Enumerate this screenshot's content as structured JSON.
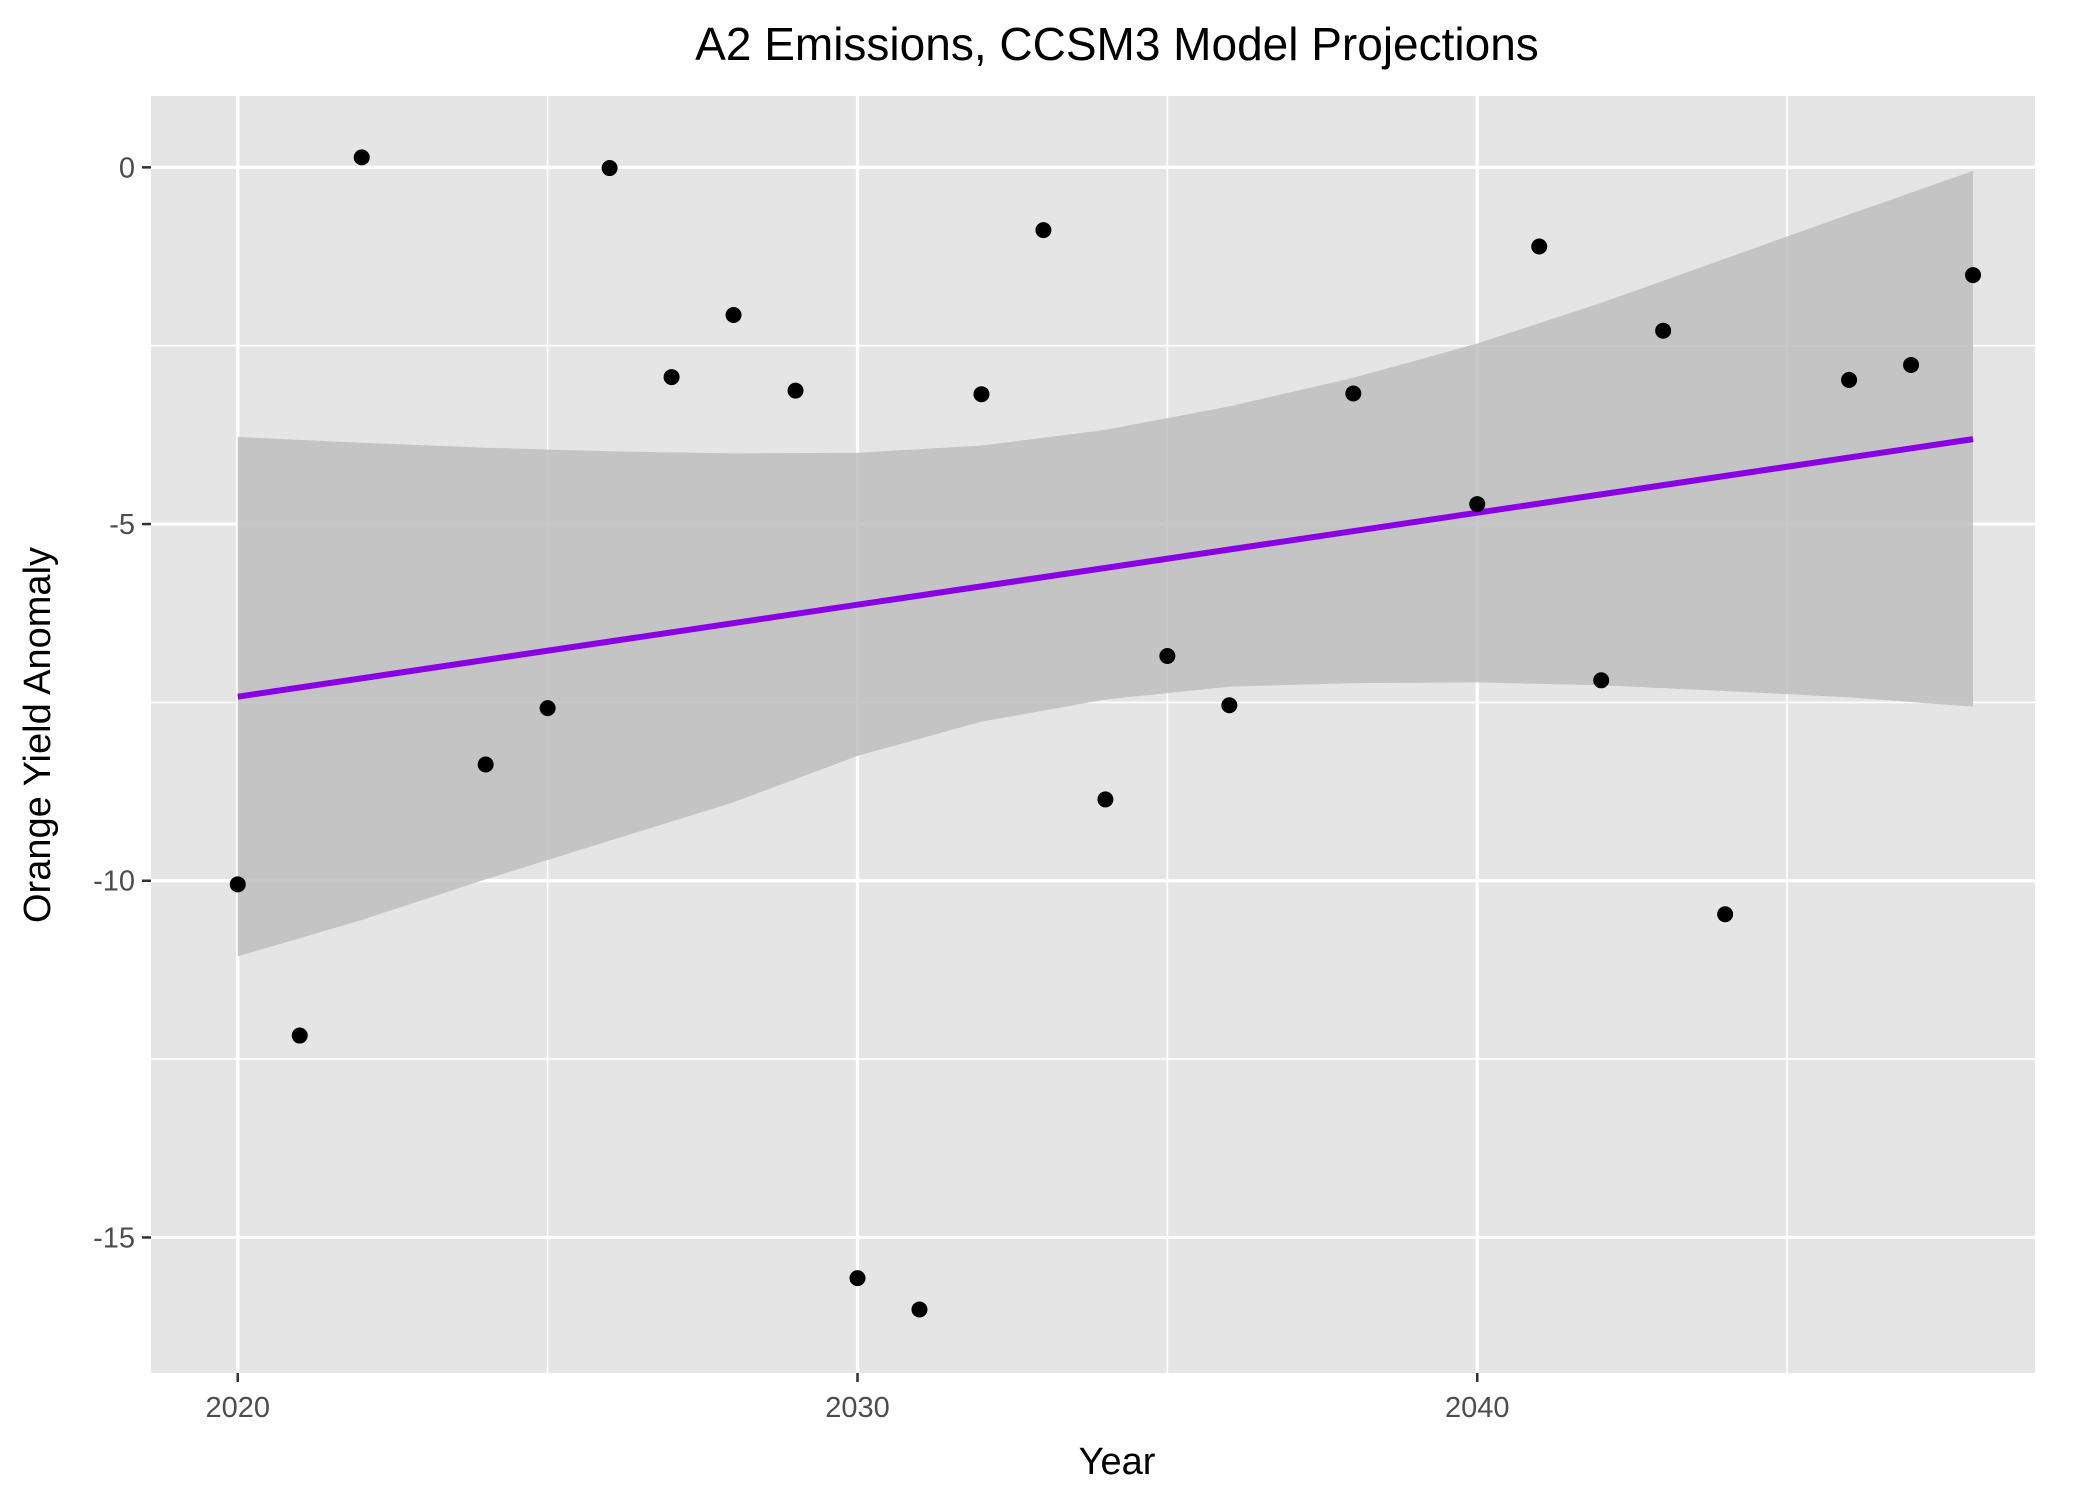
{
  "chart_data": {
    "type": "scatter",
    "title": "A2 Emissions, CCSM3 Model Projections",
    "xlabel": "Year",
    "ylabel": "Orange Yield Anomaly",
    "xlim": [
      2018.6,
      2049.0
    ],
    "ylim": [
      -16.9,
      1.0
    ],
    "x_ticks": [
      2020,
      2030,
      2040
    ],
    "y_ticks": [
      0,
      -5,
      -10,
      -15
    ],
    "x_tick_labels": [
      "2020",
      "2030",
      "2040"
    ],
    "y_tick_labels": [
      "0",
      "-5",
      "-10",
      "-15"
    ],
    "grid": true,
    "points": [
      {
        "x": 2020,
        "y": -10.05
      },
      {
        "x": 2021,
        "y": -12.17
      },
      {
        "x": 2022,
        "y": 0.14
      },
      {
        "x": 2024,
        "y": -8.37
      },
      {
        "x": 2025,
        "y": -7.58
      },
      {
        "x": 2026,
        "y": -0.01
      },
      {
        "x": 2027,
        "y": -2.94
      },
      {
        "x": 2028,
        "y": -2.07
      },
      {
        "x": 2029,
        "y": -3.13
      },
      {
        "x": 2030,
        "y": -15.57
      },
      {
        "x": 2031,
        "y": -16.01
      },
      {
        "x": 2032,
        "y": -3.18
      },
      {
        "x": 2033,
        "y": -0.88
      },
      {
        "x": 2034,
        "y": -8.86
      },
      {
        "x": 2035,
        "y": -6.85
      },
      {
        "x": 2036,
        "y": -7.54
      },
      {
        "x": 2038,
        "y": -3.17
      },
      {
        "x": 2040,
        "y": -4.72
      },
      {
        "x": 2041,
        "y": -1.11
      },
      {
        "x": 2042,
        "y": -7.19
      },
      {
        "x": 2043,
        "y": -2.29
      },
      {
        "x": 2044,
        "y": -10.47
      },
      {
        "x": 2046,
        "y": -2.98
      },
      {
        "x": 2047,
        "y": -2.77
      },
      {
        "x": 2048,
        "y": -1.51
      }
    ],
    "trend_line": {
      "x": [
        2020,
        2048
      ],
      "y": [
        -7.42,
        -3.81
      ],
      "color": "#8A00E6"
    },
    "confidence_band": {
      "x": [
        2020,
        2022,
        2024,
        2026,
        2028,
        2030,
        2032,
        2034,
        2036,
        2038,
        2040,
        2042,
        2044,
        2046,
        2048
      ],
      "upper": [
        -3.78,
        -3.86,
        -3.93,
        -3.98,
        -4.01,
        -4.0,
        -3.9,
        -3.68,
        -3.35,
        -2.95,
        -2.47,
        -1.9,
        -1.28,
        -0.66,
        -0.05
      ],
      "lower": [
        -11.06,
        -10.55,
        -9.98,
        -9.44,
        -8.9,
        -8.25,
        -7.77,
        -7.46,
        -7.28,
        -7.23,
        -7.22,
        -7.26,
        -7.34,
        -7.43,
        -7.56
      ],
      "color": "#BEBEBE"
    },
    "colors": {
      "panel": "#E5E5E5",
      "grid": "#FFFFFF",
      "point": "#000000"
    }
  }
}
